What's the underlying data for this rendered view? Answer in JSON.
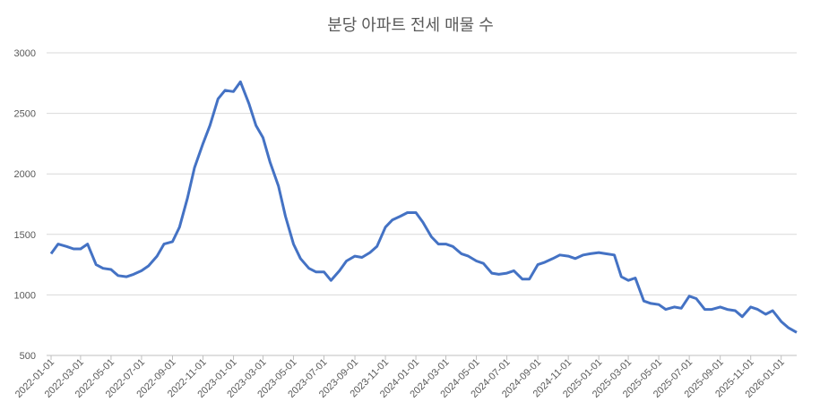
{
  "chart_data": {
    "type": "line",
    "title": "분당 아파트 전세 매물 수",
    "color": "#4472c4",
    "grid": true,
    "x": [
      "2022-01-01",
      "2022-01-15",
      "2022-02-01",
      "2022-02-15",
      "2022-03-01",
      "2022-03-15",
      "2022-04-01",
      "2022-04-15",
      "2022-05-01",
      "2022-05-15",
      "2022-06-01",
      "2022-06-15",
      "2022-07-01",
      "2022-07-15",
      "2022-08-01",
      "2022-08-15",
      "2022-09-01",
      "2022-09-15",
      "2022-10-01",
      "2022-10-15",
      "2022-11-01",
      "2022-11-15",
      "2022-12-01",
      "2022-12-15",
      "2023-01-01",
      "2023-01-15",
      "2023-02-01",
      "2023-02-15",
      "2023-03-01",
      "2023-03-15",
      "2023-04-01",
      "2023-04-15",
      "2023-05-01",
      "2023-05-15",
      "2023-06-01",
      "2023-06-15",
      "2023-07-01",
      "2023-07-15",
      "2023-08-01",
      "2023-08-15",
      "2023-09-01",
      "2023-09-15",
      "2023-10-01",
      "2023-10-15",
      "2023-11-01",
      "2023-11-15",
      "2023-12-01",
      "2023-12-15",
      "2024-01-01",
      "2024-01-15",
      "2024-02-01",
      "2024-02-15",
      "2024-03-01",
      "2024-03-15",
      "2024-04-01",
      "2024-04-15",
      "2024-05-01",
      "2024-05-15",
      "2024-06-01",
      "2024-06-15",
      "2024-07-01",
      "2024-07-15",
      "2024-08-01",
      "2024-08-15",
      "2024-09-01",
      "2024-09-15",
      "2024-10-01",
      "2024-10-15",
      "2024-11-01",
      "2024-11-15",
      "2024-12-01",
      "2024-12-15",
      "2025-01-01",
      "2025-01-15",
      "2025-02-01",
      "2025-02-15",
      "2025-03-01",
      "2025-03-15",
      "2025-04-01",
      "2025-04-15",
      "2025-05-01",
      "2025-05-15",
      "2025-06-01",
      "2025-06-15",
      "2025-07-01",
      "2025-07-15",
      "2025-08-01",
      "2025-08-15",
      "2025-09-01",
      "2025-09-15",
      "2025-10-01",
      "2025-10-15",
      "2025-11-01",
      "2025-11-15",
      "2025-12-01",
      "2025-12-15",
      "2026-01-01",
      "2026-01-15",
      "2026-02-01"
    ],
    "values": [
      1340,
      1420,
      1400,
      1380,
      1380,
      1420,
      1250,
      1220,
      1210,
      1160,
      1150,
      1170,
      1200,
      1240,
      1320,
      1420,
      1440,
      1560,
      1800,
      2050,
      2250,
      2400,
      2620,
      2690,
      2680,
      2760,
      2580,
      2400,
      2300,
      2100,
      1900,
      1650,
      1420,
      1300,
      1220,
      1190,
      1190,
      1120,
      1200,
      1280,
      1320,
      1310,
      1350,
      1400,
      1560,
      1620,
      1650,
      1680,
      1680,
      1600,
      1480,
      1420,
      1420,
      1400,
      1340,
      1320,
      1280,
      1260,
      1180,
      1170,
      1180,
      1200,
      1130,
      1130,
      1250,
      1270,
      1300,
      1330,
      1320,
      1300,
      1330,
      1340,
      1350,
      1340,
      1330,
      1150,
      1120,
      1140,
      950,
      930,
      920,
      880,
      900,
      890,
      990,
      970,
      880,
      880,
      900,
      880,
      870,
      820,
      900,
      880,
      840,
      870,
      780,
      730,
      690
    ],
    "xlim": [
      "2022-01-01",
      "2026-02-01"
    ],
    "xticks": [
      "2022-01-01",
      "2022-03-01",
      "2022-05-01",
      "2022-07-01",
      "2022-09-01",
      "2022-11-01",
      "2023-01-01",
      "2023-03-01",
      "2023-05-01",
      "2023-07-01",
      "2023-09-01",
      "2023-11-01",
      "2024-01-01",
      "2024-03-01",
      "2024-05-01",
      "2024-07-01",
      "2024-09-01",
      "2024-11-01",
      "2025-01-01",
      "2025-03-01",
      "2025-05-01",
      "2025-07-01",
      "2025-09-01",
      "2025-11-01",
      "2026-01-01"
    ],
    "ylim": [
      500,
      3000
    ],
    "yticks": [
      500,
      1000,
      1500,
      2000,
      2500,
      3000
    ]
  }
}
